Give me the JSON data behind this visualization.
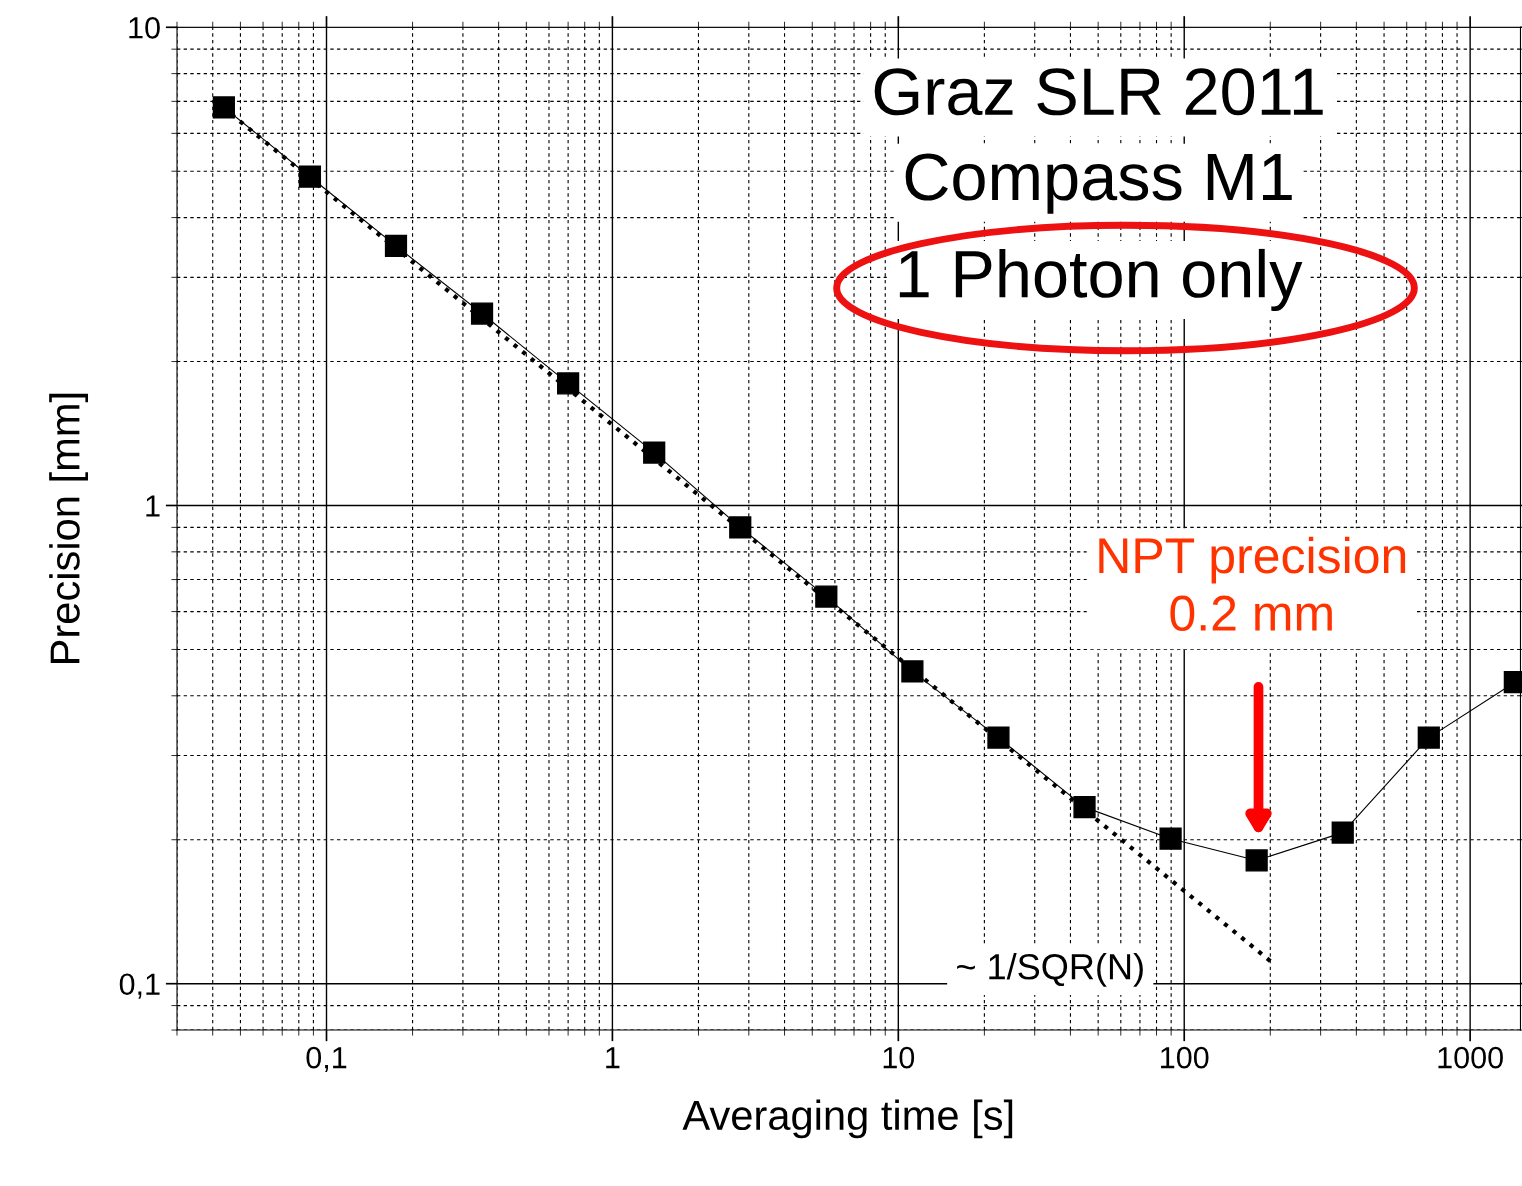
{
  "chart_data": {
    "type": "line",
    "xlabel": "Averaging time [s]",
    "ylabel": "Precision [mm]",
    "log": "xy",
    "grid": true,
    "xlim": [
      0.03,
      1500
    ],
    "ylim": [
      0.08,
      10
    ],
    "xticks": [
      {
        "value": 0.1,
        "label": "0,1"
      },
      1,
      10,
      100,
      1000
    ],
    "yticks": [
      {
        "value": 0.1,
        "label": "0,1"
      },
      1,
      10
    ],
    "series": [
      {
        "color": "#000000",
        "marker": "square",
        "line_style": "solid",
        "x": [
          0.04375,
          0.0875,
          0.175,
          0.35,
          0.7,
          1.4,
          2.8,
          5.6,
          11.2,
          22.4,
          44.8,
          89.6,
          179.2,
          358.4,
          716.8,
          1433.6
        ],
        "values": [
          6.8,
          4.87,
          3.49,
          2.52,
          1.8,
          1.29,
          0.9,
          0.645,
          0.45,
          0.327,
          0.234,
          0.201,
          0.181,
          0.207,
          0.327,
          0.427
        ]
      },
      {
        "color": "#000000",
        "marker": "none",
        "line_style": "dotted",
        "x": [
          0.0434,
          202
        ],
        "values": [
          6.8,
          0.111
        ]
      }
    ],
    "annotations": [
      "Graz SLR 2011",
      "Compass M1",
      "1 Photon only",
      "~ 1/SQR(N)",
      "NPT precision\n0.2 mm"
    ]
  }
}
